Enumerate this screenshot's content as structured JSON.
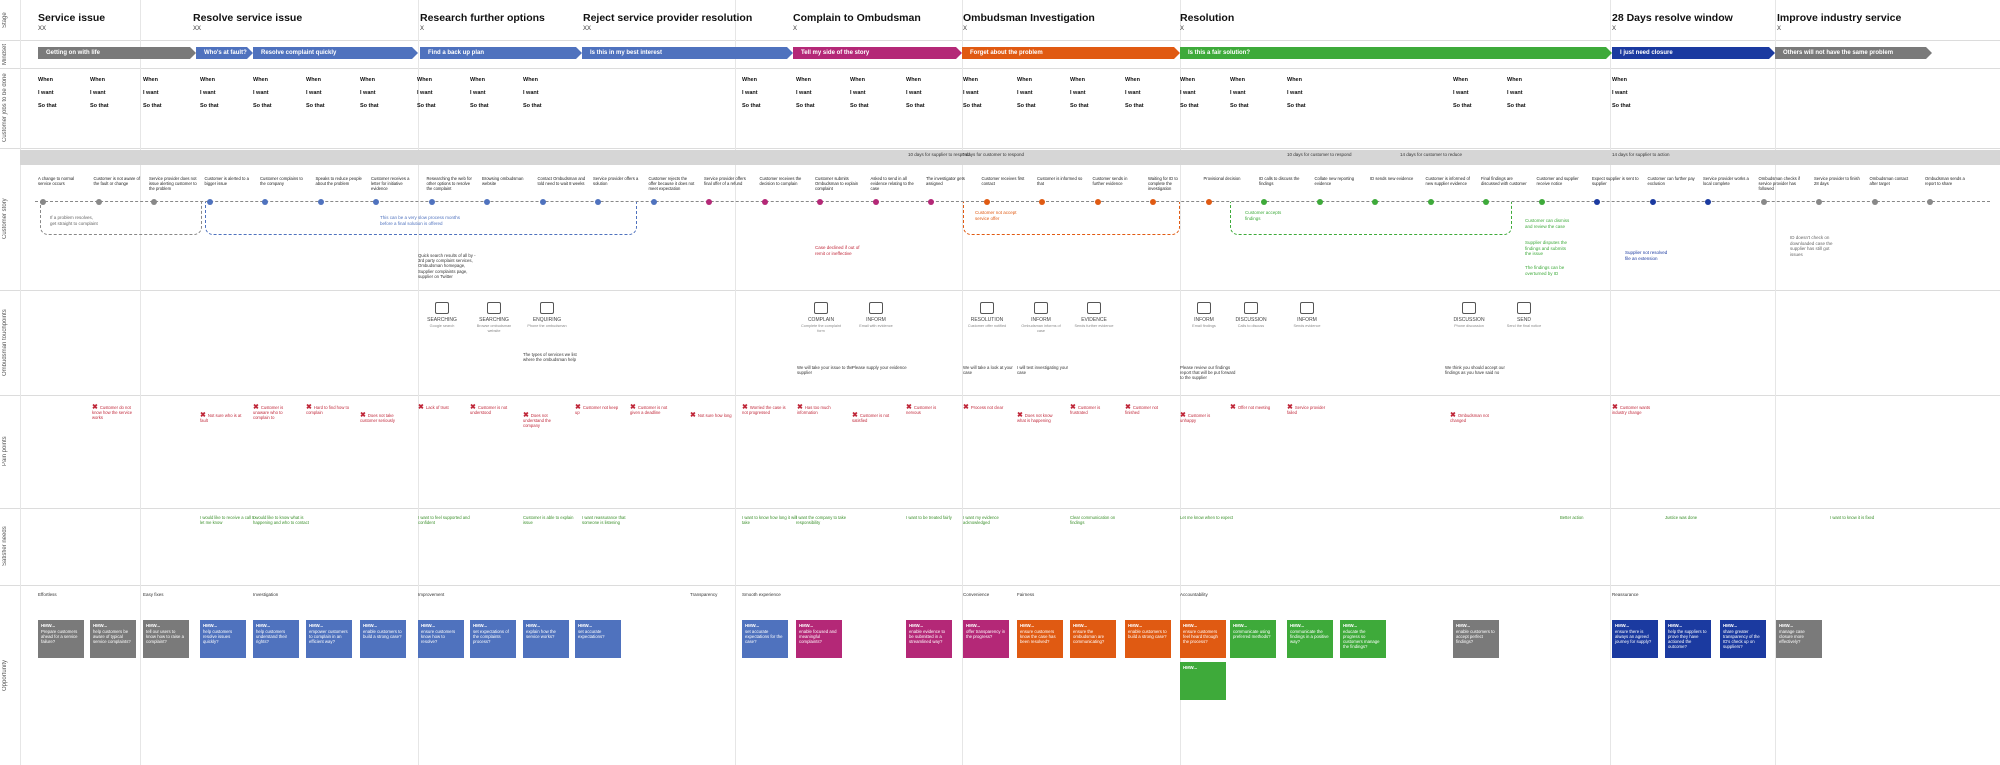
{
  "row_labels": [
    "Stage",
    "Mindset",
    "Customer jobs to be done",
    "Customer story",
    "Ombudsman touchpoints",
    "Pain points",
    "Satisfier needs",
    "Opportunity"
  ],
  "phases": [
    {
      "title": "Service issue",
      "sub": "XX"
    },
    {
      "title": "Resolve service issue",
      "sub": "XX"
    },
    {
      "title": "Research further options",
      "sub": "X"
    },
    {
      "title": "Reject service provider resolution",
      "sub": "XX"
    },
    {
      "title": "Complain to Ombudsman",
      "sub": "X"
    },
    {
      "title": "Ombudsman Investigation",
      "sub": "X"
    },
    {
      "title": "Resolution",
      "sub": "X"
    },
    {
      "title": "28 Days resolve window",
      "sub": "X"
    },
    {
      "title": "Improve industry service",
      "sub": "X"
    }
  ],
  "mindsets": [
    {
      "label": "Getting on with life",
      "color": "#7a7a7a"
    },
    {
      "label": "Who's at fault?",
      "color": "#4f72be"
    },
    {
      "label": "Resolve complaint quickly",
      "color": "#4f72be"
    },
    {
      "label": "Find a back up plan",
      "color": "#4f72be"
    },
    {
      "label": "Is this in my best interest",
      "color": "#4f72be"
    },
    {
      "label": "Tell my side of the story",
      "color": "#b42877"
    },
    {
      "label": "Forget about the problem",
      "color": "#e05a12"
    },
    {
      "label": "Is this a fair solution?",
      "color": "#3eaa3a"
    },
    {
      "label": "I just need closure",
      "color": "#1b3aa0"
    },
    {
      "label": "Others will not have the same problem",
      "color": "#7a7a7a"
    }
  ],
  "job_words": {
    "when": "When",
    "want": "I want",
    "sothat": "So that"
  },
  "banner_notes": [
    "10 days for supplier to respond",
    "7 days for customer to respond",
    "10 days for customer to respond",
    "14 days for customer to reduce",
    "14 days for supplier to action"
  ],
  "story": [
    "A change to normal service occurs",
    "Customer is not aware of the fault or change",
    "Service provider does not issue alerting customer to the problem",
    "Customer is alerted to a bigger issue",
    "Customer complains to the company",
    "Speaks to reduce people about the problem",
    "Customer receives a letter for initiative evidence",
    "Researching the web for other options to resolve the complaint",
    "Browsing ombudsman website",
    "Contact Ombudsman and told need to wait 8 weeks",
    "Service provider offers a solution",
    "Customer rejects the offer because it does not meet expectation",
    "Service provider offers final offer of a refund",
    "Customer receives the decision to complain",
    "Customer submits Ombudsman to explain complaint",
    "Asked to send in all evidence relating to the case",
    "The investigator gets assigned",
    "Customer receives first contact",
    "Customer is informed so that",
    "Customer sends in further evidence",
    "Waiting for ID to complete the investigation",
    "Provisional decision",
    "ID calls to discuss the findings",
    "Collate new reporting evidence",
    "ID sends new evidence",
    "Customer is informed of new supplier evidence",
    "Final findings are discussed with customer",
    "Customer and supplier receive notice",
    "Expect supplier is sent to supplier",
    "Customer can further pay exclusion",
    "Service provider works a local complete",
    "Ombudsman checks if service provider has followed",
    "Service provider to finish 28 days",
    "Ombudsman contact after target",
    "Ombudsman sends a report to share"
  ],
  "loop_notes": [
    {
      "text": "If a problem resolves, get straight to complaint",
      "color": "#666"
    },
    {
      "text": "This can be a very slow process months before a final solution is offered",
      "color": "#4f72be"
    },
    {
      "text": "Case declined if out of remit or ineffective",
      "color": "#c0283a"
    },
    {
      "text": "Customer not accept service offer",
      "color": "#e05a12"
    },
    {
      "text": "Customer accepts findings",
      "color": "#3eaa3a"
    },
    {
      "text": "Customer can dismiss and review the case",
      "color": "#3eaa3a"
    },
    {
      "text": "Supplier disputes the findings and submits the issue",
      "color": "#3eaa3a"
    },
    {
      "text": "The findings can be overturned by ID",
      "color": "#3eaa3a"
    },
    {
      "text": "Supplier not resolved file an extension",
      "color": "#1b3aa0"
    },
    {
      "text": "ID doesn't check on downloaded case the supplier has still got issues",
      "color": "#666"
    }
  ],
  "touchpoints": [
    {
      "label": "SEARCHING",
      "desc": "Google search",
      "icon": "search-icon"
    },
    {
      "label": "SEARCHING",
      "desc": "Browse ombudsman website",
      "icon": "browser-icon"
    },
    {
      "label": "ENQUIRING",
      "desc": "Phone the ombudsman",
      "icon": "phone-icon"
    },
    {
      "label": "COMPLAIN",
      "desc": "Complete the complaint form",
      "icon": "device-icon"
    },
    {
      "label": "INFORM",
      "desc": "Email with evidence",
      "icon": "email-icon"
    },
    {
      "label": "RESOLUTION",
      "desc": "Customer offer notified",
      "icon": "email-icon"
    },
    {
      "label": "INFORM",
      "desc": "Ombudsman informs of case",
      "icon": "device-icon"
    },
    {
      "label": "EVIDENCE",
      "desc": "Sends further evidence",
      "icon": "browser-icon"
    },
    {
      "label": "INFORM",
      "desc": "Email findings",
      "icon": "email-icon"
    },
    {
      "label": "DISCUSSION",
      "desc": "Calls to discuss",
      "icon": "phone-icon"
    },
    {
      "label": "INFORM",
      "desc": "Sends evidence",
      "icon": "email-icon"
    },
    {
      "label": "DISCUSSION",
      "desc": "Phone discussion",
      "icon": "phone-icon"
    },
    {
      "label": "SEND",
      "desc": "Send the final notice",
      "icon": "browser-icon"
    }
  ],
  "quotes": [
    "Quick search results of all by - 3rd party complaint services, Ombudsman homepage, Supplier complaints page, supplier on Twitter",
    "The types of services we list where the ombudsman help",
    "We will take your issue to the supplier",
    "Please supply your evidence",
    "We will take a look at your case",
    "I will test investigating your case",
    "Please review our findings report that will be put forward to the supplier",
    "We think you should accept our findings as you have said no"
  ],
  "pain_points": [
    "Customer do not know how the service works",
    "Not sure who is at fault",
    "Customer is unaware who to complain to",
    "Hard to find how to complain",
    "Does not take customer seriously",
    "Lack of trust",
    "Customer is not understood",
    "Does not understand the company",
    "Customer not keep up",
    "Customer is not given a deadline",
    "Not sure how long",
    "Worried the case is not progressed",
    "Has too much information",
    "Customer is not satisfied",
    "Customer is nervous",
    "Process not clear",
    "Does not know what is happening",
    "Customer is frustrated",
    "Customer not finished",
    "Customer is unhappy",
    "Offer not meeting",
    "Service provider failed",
    "Ombudsman not changed",
    "Customer wants industry change"
  ],
  "needs": [
    "I would like to receive a call to let me know",
    "I would like to know what is happening and who to contact",
    "I want to feel supported and confident",
    "Customer is able to explain issue",
    "I want reassurance that someone is listening",
    "I want to know how long it will take",
    "I want the company to take responsibility",
    "I want to be treated fairly",
    "I want my evidence acknowledged",
    "Clear communication on findings",
    "Let me know when to expect",
    "Better action",
    "Justice was done",
    "I want to know it is fixed"
  ],
  "opp_questions": [
    "Effortless",
    "Easy fixes",
    "Investigation",
    "Improvement",
    "Transparency",
    "Smooth experience",
    "Convenience",
    "Fairness",
    "Accountability",
    "Reassurance"
  ],
  "opportunity_cards": [
    {
      "h": "HMW...",
      "t": "Prepare customers ahead for a service failure?",
      "c": "#7a7a7a"
    },
    {
      "h": "HMW...",
      "t": "help customers be aware of typical service complaints?",
      "c": "#7a7a7a"
    },
    {
      "h": "HMW...",
      "t": "tell our users to know how to raise a complaint?",
      "c": "#7a7a7a"
    },
    {
      "h": "HMW...",
      "t": "help customers resolve issues quickly?",
      "c": "#4f72be"
    },
    {
      "h": "HMW...",
      "t": "help customers understand their rights?",
      "c": "#4f72be"
    },
    {
      "h": "HMW...",
      "t": "empower customers to complain in an efficient way?",
      "c": "#4f72be"
    },
    {
      "h": "HMW...",
      "t": "enable customers to build a strong case?",
      "c": "#4f72be"
    },
    {
      "h": "HMW...",
      "t": "ensure customers know how to resolve?",
      "c": "#4f72be"
    },
    {
      "h": "HMW...",
      "t": "set expectations of the complaints process?",
      "c": "#4f72be"
    },
    {
      "h": "HMW...",
      "t": "explain how the service works?",
      "c": "#4f72be"
    },
    {
      "h": "HMW...",
      "t": "set accurate expectations?",
      "c": "#4f72be"
    },
    {
      "h": "HMW...",
      "t": "set accurate expectations for the case?",
      "c": "#4f72be"
    },
    {
      "h": "HMW...",
      "t": "enable focused and meaningful complaints?",
      "c": "#b42877"
    },
    {
      "h": "HMW...",
      "t": "enable evidence to be submitted in a streamlined way?",
      "c": "#b42877"
    },
    {
      "h": "HMW...",
      "t": "offer transparency in the progress?",
      "c": "#b42877"
    },
    {
      "h": "HMW...",
      "t": "ensure customers know the case has been resolved?",
      "c": "#e05a12"
    },
    {
      "h": "HMW...",
      "t": "ensure the ombudsman are communicating?",
      "c": "#e05a12"
    },
    {
      "h": "HMW...",
      "t": "enable customers to build a strong case?",
      "c": "#e05a12"
    },
    {
      "h": "HMW...",
      "t": "ensure customers feel heard through the process?",
      "c": "#e05a12"
    },
    {
      "h": "HMW...",
      "t": "communicate using preferred methods?",
      "c": "#3eaa3a"
    },
    {
      "h": "HMW...",
      "t": "communicate the findings in a positive way?",
      "c": "#3eaa3a"
    },
    {
      "h": "HMW...",
      "t": "educate the progress so customers manage the findings?",
      "c": "#3eaa3a"
    },
    {
      "h": "HMW...",
      "t": "",
      "c": "#3eaa3a"
    },
    {
      "h": "HMW...",
      "t": "enable customers to accept perfect findings?",
      "c": "#7a7a7a"
    },
    {
      "h": "HMW...",
      "t": "ensure there is always an agreed journey for supply?",
      "c": "#1b3aa0"
    },
    {
      "h": "HMW...",
      "t": "help the suppliers to prove they have actioned the outcome?",
      "c": "#1b3aa0"
    },
    {
      "h": "HMW...",
      "t": "share greater transparency of the ID's check up on suppliers?",
      "c": "#1b3aa0"
    },
    {
      "h": "HMW...",
      "t": "manage case closure more effectively?",
      "c": "#7a7a7a"
    }
  ]
}
